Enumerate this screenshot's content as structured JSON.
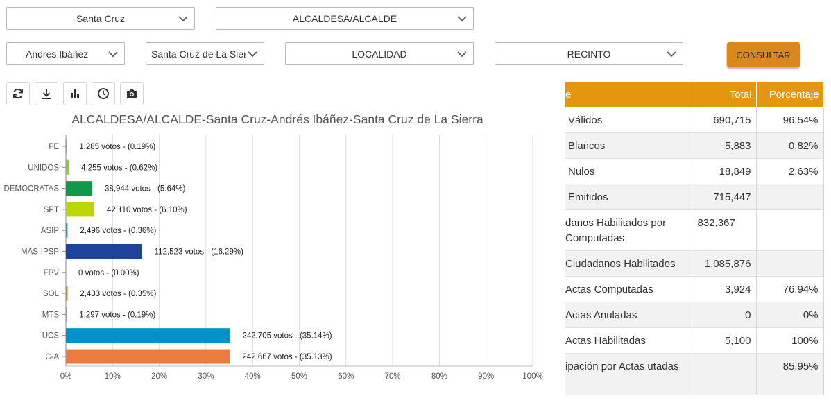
{
  "filters": {
    "departamento": "Santa Cruz",
    "cargo": "ALCALDESA/ALCALDE",
    "provincia": "Andrés Ibáñez",
    "municipio": "Santa Cruz de La Sierra",
    "localidad": "LOCALIDAD",
    "recinto": "RECINTO",
    "consultar": "CONSULTAR"
  },
  "toolbar": [
    "refresh-icon",
    "download-icon",
    "bar-chart-icon",
    "clock-icon",
    "camera-icon"
  ],
  "chart_data": {
    "type": "bar",
    "title": "ALCALDESA/ALCALDE-Santa Cruz-Andrés Ibáñez-Santa Cruz de La Sierra",
    "categories": [
      "FE",
      "UNIDOS",
      "DEMOCRATAS",
      "SPT",
      "ASIP",
      "MAS-IPSP",
      "FPV",
      "SOL",
      "MTS",
      "UCS",
      "C-A"
    ],
    "values": [
      0.19,
      0.62,
      5.64,
      6.1,
      0.36,
      16.29,
      0.0,
      0.35,
      0.19,
      35.14,
      35.13
    ],
    "labels": [
      "1,285 votos - (0.19%)",
      "4,255 votos - (0.62%)",
      "38,944 votos - (5.64%)",
      "42,110 votos - (6.10%)",
      "2,496 votos - (0.36%)",
      "112,523 votos - (16.29%)",
      "0 votos - (0.00%)",
      "2,433 votos - (0.35%)",
      "1,297 votos - (0.19%)",
      "242,705 votos - (35.14%)",
      "242,667 votos - (35.13%)"
    ],
    "colors": [
      "#9e9e9e",
      "#8dc63f",
      "#0e9a48",
      "#bed600",
      "#1a9bd7",
      "#1d449a",
      "#cccccc",
      "#e87722",
      "#999999",
      "#0092c8",
      "#ec7b40"
    ],
    "xticks": [
      "0%",
      "10%",
      "20%",
      "30%",
      "40%",
      "50%",
      "60%",
      "70%",
      "80%",
      "90%",
      "100%"
    ],
    "xlim": [
      0,
      100
    ],
    "orientation": "horizontal",
    "grid": true
  },
  "table": {
    "headers": [
      "e",
      "Total",
      "Porcentaje"
    ],
    "rows": [
      {
        "label": "Válidos",
        "total": "690,715",
        "pct": "96.54%"
      },
      {
        "label": "Blancos",
        "total": "5,883",
        "pct": "0.82%"
      },
      {
        "label": "Nulos",
        "total": "18,849",
        "pct": "2.63%"
      },
      {
        "label": "Emitidos",
        "total": "715,447",
        "pct": ""
      },
      {
        "label": "danos Habilitados por Computadas",
        "total": "832,367",
        "pct": ""
      },
      {
        "label": "Ciudadanos Habilitados",
        "total": "1,085,876",
        "pct": ""
      },
      {
        "label": "Actas Computadas",
        "total": "3,924",
        "pct": "76.94%"
      },
      {
        "label": "Actas Anuladas",
        "total": "0",
        "pct": "0%"
      },
      {
        "label": "Actas Habilitadas",
        "total": "5,100",
        "pct": "100%"
      },
      {
        "label": "ipación por Actas utadas",
        "total": "",
        "pct": "85.95%"
      }
    ]
  }
}
